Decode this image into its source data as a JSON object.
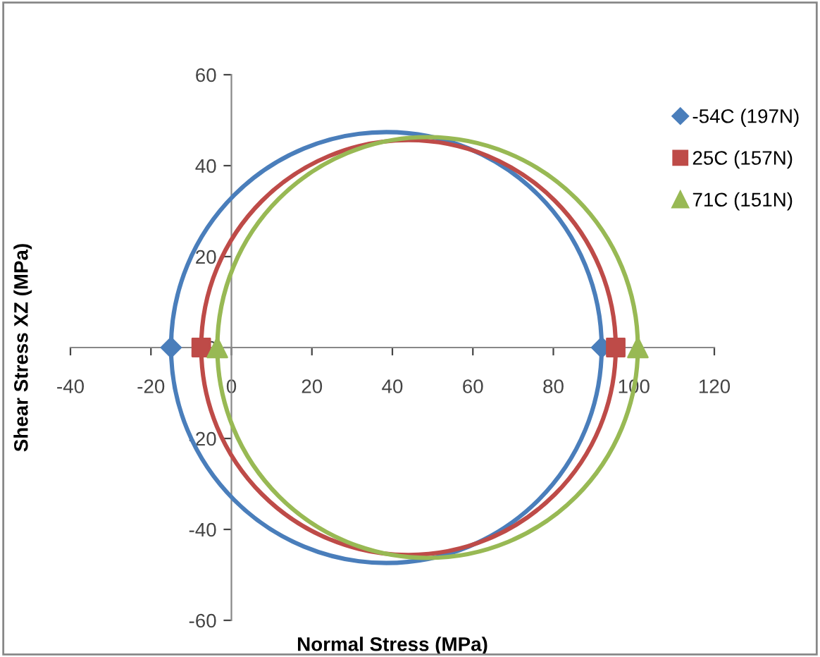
{
  "chart_data": {
    "type": "scatter",
    "xlabel": "Normal Stress (MPa)",
    "ylabel": "Shear Stress XZ (MPa)",
    "xlim": [
      -40,
      120
    ],
    "xticks": [
      -40,
      -20,
      0,
      20,
      40,
      60,
      80,
      100,
      120
    ],
    "ylim": [
      -60,
      60
    ],
    "yticks": [
      -60,
      -40,
      -20,
      0,
      20,
      40,
      60
    ],
    "grid": false,
    "legend": "top right",
    "series": [
      {
        "name": "-54C (197N)",
        "color": "#4a7ebb",
        "marker": "diamond",
        "x": [
          -15,
          92
        ],
        "values": [
          0,
          0
        ]
      },
      {
        "name": "25C (157N)",
        "color": "#be4b48",
        "marker": "square",
        "x": [
          -7.5,
          95.5
        ],
        "values": [
          0,
          0
        ]
      },
      {
        "name": "71C (151N)",
        "color": "#98b954",
        "marker": "triangle",
        "x": [
          -3.5,
          101
        ],
        "values": [
          0,
          0
        ]
      }
    ]
  }
}
